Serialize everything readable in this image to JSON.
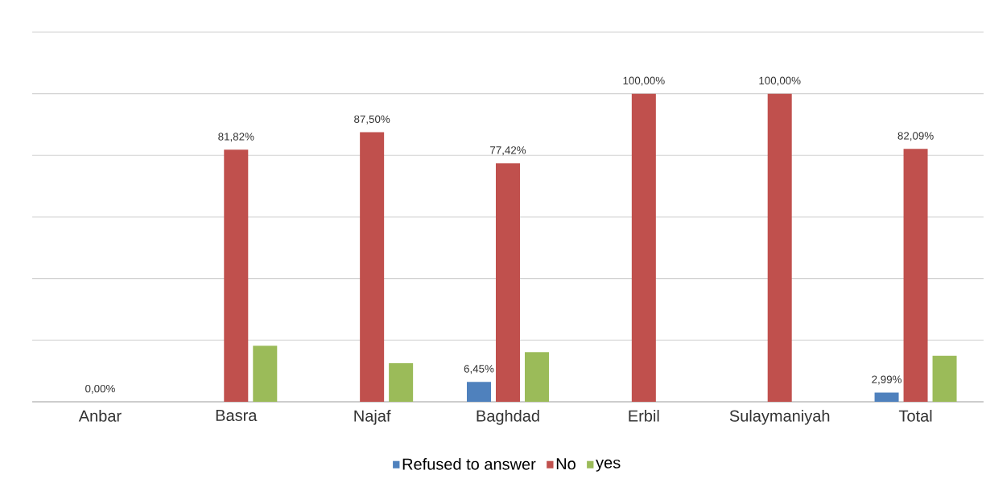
{
  "chart_data": {
    "type": "bar",
    "categories": [
      "Anbar",
      "Basra",
      "Najaf",
      "Baghdad",
      "Erbil",
      "Sulaymaniyah",
      "Total"
    ],
    "series": [
      {
        "name": "Refused to answer",
        "color": "#4f81bd",
        "values": [
          null,
          null,
          null,
          6.45,
          null,
          null,
          2.99
        ],
        "value_labels": [
          null,
          null,
          null,
          "6,45%",
          null,
          null,
          "2,99%"
        ]
      },
      {
        "name": "No",
        "color": "#c0504d",
        "values": [
          0,
          81.82,
          87.5,
          77.42,
          100,
          100,
          82.09
        ],
        "value_labels": [
          "0,00%",
          "81,82%",
          "87,50%",
          "77,42%",
          "100,00%",
          "100,00%",
          "82,09%"
        ]
      },
      {
        "name": "yes",
        "color": "#9bbb59",
        "values": [
          null,
          18.18,
          12.5,
          16.13,
          null,
          null,
          14.93
        ]
      }
    ],
    "ylim": [
      0,
      120
    ],
    "yticks": [
      {
        "value": 0,
        "label": null
      },
      {
        "value": 20,
        "label": null
      },
      {
        "value": 40,
        "label": null
      },
      {
        "value": 60,
        "label": null
      },
      {
        "value": 80,
        "label": null
      },
      {
        "value": 100,
        "label": null
      },
      {
        "value": 120,
        "label": null
      }
    ],
    "grid": "y",
    "legend": "bottom",
    "tick_labels": "x"
  }
}
